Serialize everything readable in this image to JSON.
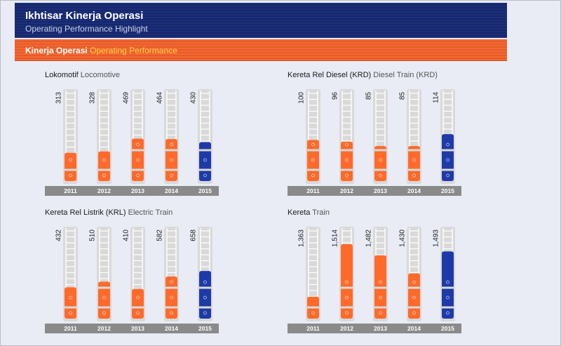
{
  "header": {
    "title": "Ikhtisar Kinerja Operasi",
    "subtitle": "Operating Performance Highlight"
  },
  "section": {
    "title_id": "Kinerja Operasi",
    "title_en": "Operating Performance"
  },
  "colors": {
    "orange": "#ff6a2b",
    "blue": "#1e3aa8",
    "tube": "#d9d9d9",
    "axis": "#8a8a8a"
  },
  "chart_data": [
    {
      "type": "bar",
      "title_id": "Lokomotif",
      "title_en": "Locomotive",
      "categories": [
        "2011",
        "2012",
        "2013",
        "2014",
        "2015"
      ],
      "values": [
        313,
        328,
        469,
        464,
        430
      ],
      "labels": [
        "313",
        "328",
        "469",
        "464",
        "430"
      ],
      "ylim": [
        0,
        1000
      ]
    },
    {
      "type": "bar",
      "title_id": "Kereta Rel Diesel (KRD)",
      "title_en": "Diesel Train (KRD)",
      "categories": [
        "2011",
        "2012",
        "2013",
        "2014",
        "2015"
      ],
      "values": [
        100,
        96,
        85,
        85,
        114
      ],
      "labels": [
        "100",
        "96",
        "85",
        "85",
        "114"
      ],
      "ylim": [
        0,
        220
      ]
    },
    {
      "type": "bar",
      "title_id": "Kereta Rel Listrik (KRL)",
      "title_en": "Electric Train",
      "categories": [
        "2011",
        "2012",
        "2013",
        "2014",
        "2015"
      ],
      "values": [
        432,
        510,
        410,
        582,
        658
      ],
      "labels": [
        "432",
        "510",
        "410",
        "582",
        "658"
      ],
      "ylim": [
        0,
        1250
      ]
    },
    {
      "type": "bar",
      "title_id": "Kereta",
      "title_en": "Train",
      "categories": [
        "2011",
        "2012",
        "2013",
        "2014",
        "2015"
      ],
      "values": [
        1363,
        1514,
        1482,
        1430,
        1493
      ],
      "labels": [
        "1,363",
        "1,514",
        "1,482",
        "1,430",
        "1,493"
      ],
      "ylim": [
        1300,
        1560
      ]
    }
  ]
}
